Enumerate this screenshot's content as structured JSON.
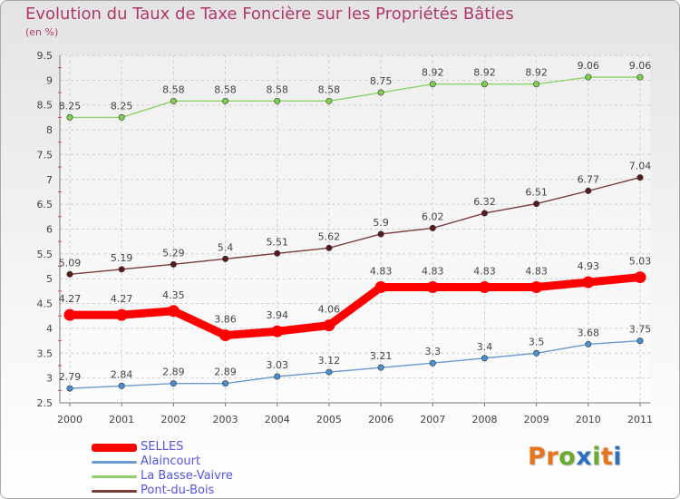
{
  "colors": {
    "title": "#b1376b",
    "legend_text": "#5555dd",
    "grid": "#cfcfcf",
    "axis": "#777777",
    "labels": "#444444",
    "logo": [
      "#e8731a",
      "#e8731a",
      "#6aab2e",
      "#2f6fbf",
      "#6aab2e",
      "#e8731a",
      "#2f6fbf"
    ]
  },
  "chart_data": {
    "type": "line",
    "title": "Evolution du Taux de Taxe Foncière sur les Propriétés Bâties",
    "ylabel": "(en %)",
    "xlabel": "",
    "ylim": [
      2.5,
      9.5
    ],
    "yticks": [
      "2.5",
      "3",
      "3.5",
      "4",
      "4.5",
      "5",
      "5.5",
      "6",
      "6.5",
      "7",
      "7.5",
      "8",
      "8.5",
      "9",
      "9.5"
    ],
    "categories": [
      "2000",
      "2001",
      "2002",
      "2003",
      "2004",
      "2005",
      "2006",
      "2007",
      "2008",
      "2009",
      "2010",
      "2011"
    ],
    "grid": true,
    "legend_position": "bottom-left",
    "series": [
      {
        "name": "SELLES",
        "color": "#ff0000",
        "thick": true,
        "values": [
          4.27,
          4.27,
          4.35,
          3.86,
          3.94,
          4.06,
          4.83,
          4.83,
          4.83,
          4.83,
          4.93,
          5.03
        ],
        "labels": [
          "4.27",
          "4.27",
          "4.35",
          "3.86",
          "3.94",
          "4.06",
          "4.83",
          "4.83",
          "4.83",
          "4.83",
          "4.93",
          "5.03"
        ]
      },
      {
        "name": "Alaincourt",
        "color": "#6a9bd0",
        "marker_color": "#4a8fd4",
        "values": [
          2.79,
          2.84,
          2.89,
          2.89,
          3.03,
          3.12,
          3.21,
          3.3,
          3.4,
          3.5,
          3.68,
          3.75
        ],
        "labels": [
          "2.79",
          "2.84",
          "2.89",
          "2.89",
          "3.03",
          "3.12",
          "3.21",
          "3.3",
          "3.4",
          "3.5",
          "3.68",
          "3.75"
        ]
      },
      {
        "name": "La Basse-Vaivre",
        "color": "#8fd16a",
        "marker_color": "#7ed04e",
        "values": [
          8.25,
          8.25,
          8.58,
          8.58,
          8.58,
          8.58,
          8.75,
          8.92,
          8.92,
          8.92,
          9.06,
          9.06
        ],
        "labels": [
          "8.25",
          "8.25",
          "8.58",
          "8.58",
          "8.58",
          "8.58",
          "8.75",
          "8.92",
          "8.92",
          "8.92",
          "9.06",
          "9.06"
        ]
      },
      {
        "name": "Pont-du-Bois",
        "color": "#7a3b3b",
        "marker_color": "#5a1a1a",
        "values": [
          5.09,
          5.19,
          5.29,
          5.4,
          5.51,
          5.62,
          5.9,
          6.02,
          6.32,
          6.51,
          6.77,
          7.04
        ],
        "labels": [
          "5.09",
          "5.19",
          "5.29",
          "5.4",
          "5.51",
          "5.62",
          "5.9",
          "6.02",
          "6.32",
          "6.51",
          "6.77",
          "7.04"
        ]
      }
    ]
  },
  "legend": {
    "items": [
      "SELLES",
      "Alaincourt",
      "La Basse-Vaivre",
      "Pont-du-Bois"
    ]
  },
  "logo": {
    "letters": [
      "P",
      "r",
      "o",
      "x",
      "i",
      "t",
      "i"
    ]
  }
}
